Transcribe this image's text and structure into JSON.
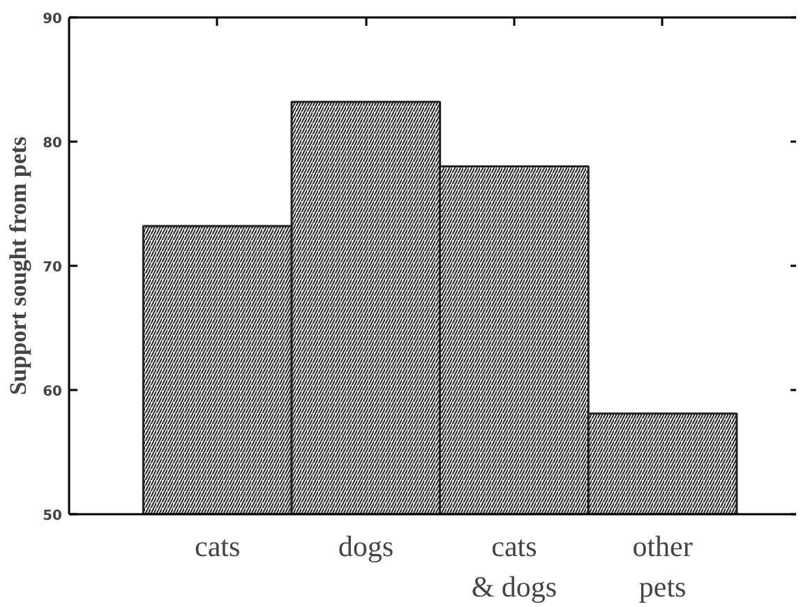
{
  "chart_data": {
    "type": "bar",
    "ylabel": "Support sought from pets",
    "categories": [
      "cats",
      "dogs",
      "cats\n& dogs",
      "other\npets"
    ],
    "values": [
      73.2,
      83.2,
      78.0,
      58.1
    ],
    "color": "#ffffff",
    "ylim": [
      50,
      90
    ],
    "yticks": [
      50,
      60,
      70,
      80,
      90
    ],
    "grid": false
  }
}
